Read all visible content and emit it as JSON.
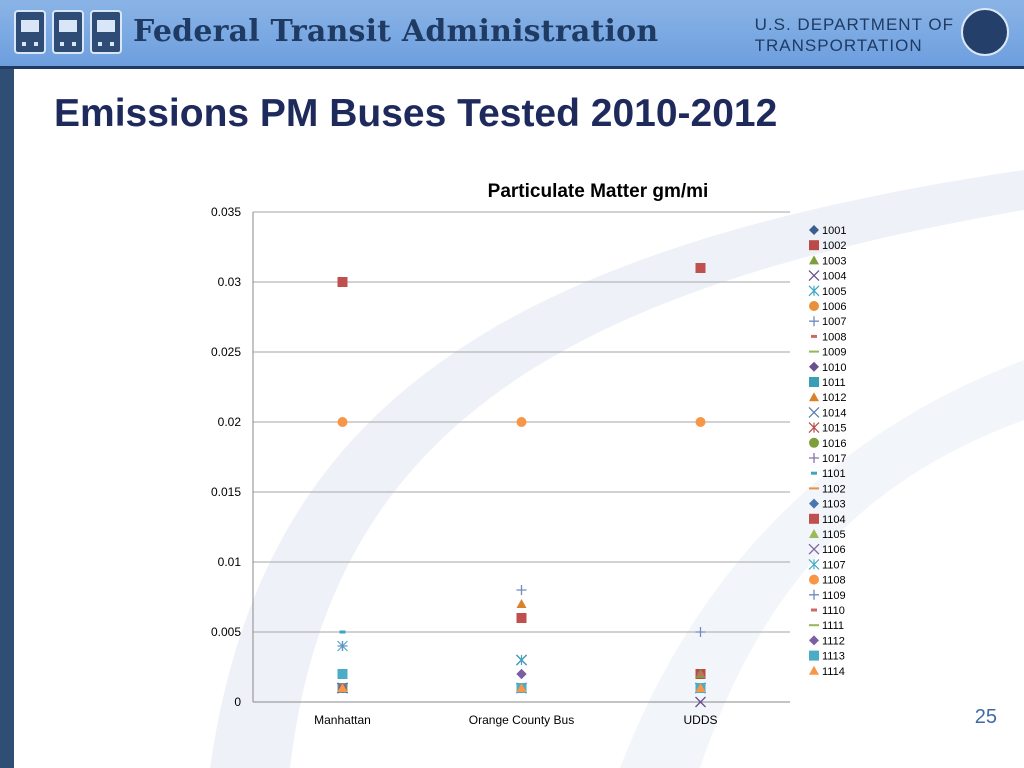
{
  "header": {
    "agency_name": "Federal Transit Administration",
    "department_line1": "U.S. DEPARTMENT OF",
    "department_line2": "TRANSPORTATION"
  },
  "slide": {
    "title": "Emissions PM Buses Tested 2010-2012",
    "page_number": "25"
  },
  "colors": {
    "header_blue": "#7aa9e2",
    "navy": "#1f2a5c",
    "series_blue": "#3a5f8f",
    "series_red": "#b94a48",
    "series_green": "#7e9e3c",
    "series_purple": "#6a4f8f",
    "series_teal": "#3aa7c2",
    "series_orange": "#e8913a"
  },
  "chart_data": {
    "type": "scatter",
    "title": "Particulate Matter gm/mi",
    "xlabel": "",
    "ylabel": "",
    "categories": [
      "Manhattan",
      "Orange County Bus",
      "UDDS"
    ],
    "ylim": [
      0,
      0.035
    ],
    "yticks": [
      "0",
      "0.005",
      "0.01",
      "0.015",
      "0.02",
      "0.025",
      "0.03",
      "0.035"
    ],
    "grid": true,
    "legend_position": "right",
    "series": [
      {
        "name": "1001",
        "marker": "diamond",
        "color": "#3a5f8f",
        "values": [
          0.001,
          0.002,
          0.002
        ]
      },
      {
        "name": "1002",
        "marker": "square",
        "color": "#b94a48",
        "values": [
          0.001,
          0.006,
          0.002
        ]
      },
      {
        "name": "1003",
        "marker": "triangle",
        "color": "#7e9e3c",
        "values": [
          0.001,
          0.001,
          0.002
        ]
      },
      {
        "name": "1004",
        "marker": "x",
        "color": "#6a4f8f",
        "values": [
          0.001,
          0.003,
          0
        ]
      },
      {
        "name": "1005",
        "marker": "star",
        "color": "#3aa7c2",
        "values": [
          0.001,
          0.003,
          0.001
        ]
      },
      {
        "name": "1006",
        "marker": "circle",
        "color": "#e8913a",
        "values": [
          0.001,
          0.001,
          0.001
        ]
      },
      {
        "name": "1007",
        "marker": "plus",
        "color": "#6d8cc0",
        "values": [
          0.001,
          0.001,
          0.001
        ]
      },
      {
        "name": "1008",
        "marker": "dash",
        "color": "#c96a68",
        "values": [
          0.001,
          0.001,
          0.002
        ]
      },
      {
        "name": "1009",
        "marker": "line",
        "color": "#9ab45a",
        "values": [
          0.001,
          0.001,
          0.001
        ]
      },
      {
        "name": "1010",
        "marker": "diamond",
        "color": "#6a4f8f",
        "values": [
          0.001,
          0.002,
          0.001
        ]
      },
      {
        "name": "1011",
        "marker": "square",
        "color": "#3a9fb5",
        "values": [
          0.001,
          0.001,
          0.001
        ]
      },
      {
        "name": "1012",
        "marker": "triangle",
        "color": "#d9822b",
        "values": [
          0.001,
          0.007,
          0.001
        ]
      },
      {
        "name": "1014",
        "marker": "x",
        "color": "#5a7fb0",
        "values": [
          0.001,
          0.001,
          0.001
        ]
      },
      {
        "name": "1015",
        "marker": "star",
        "color": "#b94a48",
        "values": [
          0.001,
          0.001,
          0.001
        ]
      },
      {
        "name": "1016",
        "marker": "circle",
        "color": "#7e9e3c",
        "values": [
          0.001,
          0.001,
          0.001
        ]
      },
      {
        "name": "1017",
        "marker": "plus",
        "color": "#8a70b0",
        "values": [
          0.001,
          0.001,
          0.001
        ]
      },
      {
        "name": "1101",
        "marker": "dash",
        "color": "#3aa7c2",
        "values": [
          0.005,
          0.001,
          0.001
        ]
      },
      {
        "name": "1102",
        "marker": "line",
        "color": "#e8913a",
        "values": [
          0.001,
          0.001,
          0.001
        ]
      },
      {
        "name": "1103",
        "marker": "diamond",
        "color": "#4a76b0",
        "values": [
          0.001,
          0.001,
          0.001
        ]
      },
      {
        "name": "1104",
        "marker": "square",
        "color": "#c0504d",
        "values": [
          0.03,
          0.006,
          0.031
        ]
      },
      {
        "name": "1105",
        "marker": "triangle",
        "color": "#9bbb59",
        "values": [
          0.001,
          0.001,
          0.001
        ]
      },
      {
        "name": "1106",
        "marker": "x",
        "color": "#8064a2",
        "values": [
          0.001,
          0.001,
          0.001
        ]
      },
      {
        "name": "1107",
        "marker": "star",
        "color": "#4bacc6",
        "values": [
          0.004,
          0.001,
          0.001
        ]
      },
      {
        "name": "1108",
        "marker": "circle",
        "color": "#f79646",
        "values": [
          0.02,
          0.02,
          0.02
        ]
      },
      {
        "name": "1109",
        "marker": "plus",
        "color": "#6d8cc0",
        "values": [
          0.004,
          0.008,
          0.005
        ]
      },
      {
        "name": "1110",
        "marker": "dash",
        "color": "#c96a68",
        "values": [
          0.001,
          0.001,
          0.002
        ]
      },
      {
        "name": "1111",
        "marker": "line",
        "color": "#9ab45a",
        "values": [
          0.001,
          0.001,
          0.001
        ]
      },
      {
        "name": "1112",
        "marker": "diamond",
        "color": "#7b5fa0",
        "values": [
          0.001,
          0.002,
          0.001
        ]
      },
      {
        "name": "1113",
        "marker": "square",
        "color": "#4bacc6",
        "values": [
          0.002,
          0.001,
          0.001
        ]
      },
      {
        "name": "1114",
        "marker": "triangle",
        "color": "#f79646",
        "values": [
          0.001,
          0.001,
          0.001
        ]
      }
    ]
  }
}
